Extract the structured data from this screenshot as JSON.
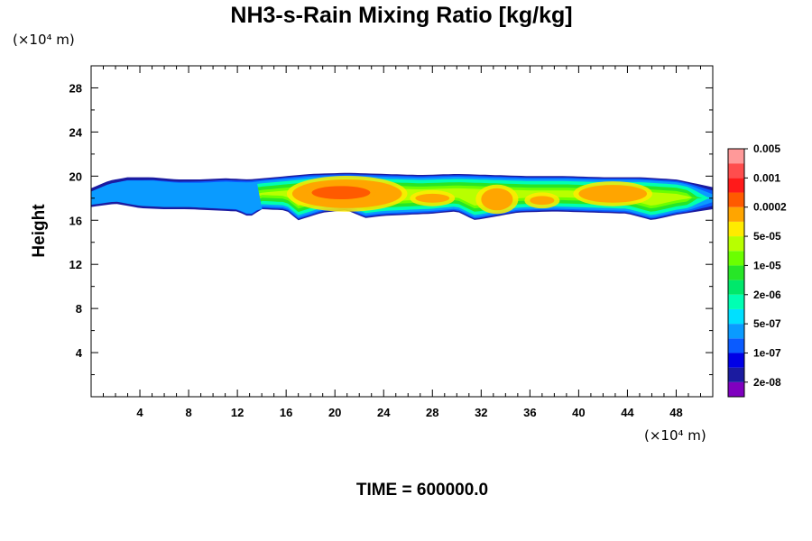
{
  "chart_data": {
    "type": "heatmap",
    "title": "NH3-s-Rain Mixing Ratio [kg/kg]",
    "ylabel": "Height",
    "x_unit_label": "(×10⁴ m)",
    "y_unit_label": "(×10⁴ m)",
    "xlim": [
      0,
      51
    ],
    "ylim": [
      0,
      30
    ],
    "x_ticks": [
      "4",
      "8",
      "12",
      "16",
      "20",
      "24",
      "28",
      "32",
      "36",
      "40",
      "44",
      "48"
    ],
    "y_ticks": [
      "4",
      "8",
      "12",
      "16",
      "20",
      "24",
      "28"
    ],
    "time_label": "TIME = 600000.0",
    "colorbar": {
      "colors": [
        "#7f00bf",
        "#1b1ba0",
        "#0000e6",
        "#0a5bff",
        "#0a9bff",
        "#00e0ff",
        "#00ffb3",
        "#00e86b",
        "#27e627",
        "#6bff00",
        "#b8ff00",
        "#ffeb00",
        "#ffa500",
        "#ff5a00",
        "#ff1a1a",
        "#ff4d4d",
        "#ff9999"
      ],
      "labels": [
        "2e-08",
        "1e-07",
        "5e-07",
        "2e-06",
        "1e-05",
        "5e-05",
        "0.0002",
        "0.001",
        "0.005"
      ]
    },
    "layer": {
      "description_levels": "mixing ratio field confined between roughly 16 and 20.5 (×10⁴ m)",
      "top": [
        [
          0,
          18.9
        ],
        [
          1.5,
          19.6
        ],
        [
          3,
          19.9
        ],
        [
          5,
          19.9
        ],
        [
          7,
          19.7
        ],
        [
          9,
          19.7
        ],
        [
          11,
          19.8
        ],
        [
          13,
          19.7
        ],
        [
          15,
          19.9
        ],
        [
          18,
          20.2
        ],
        [
          21,
          20.3
        ],
        [
          24,
          20.2
        ],
        [
          27,
          20.1
        ],
        [
          30,
          20.2
        ],
        [
          33,
          20.1
        ],
        [
          36,
          20.0
        ],
        [
          39,
          20.0
        ],
        [
          42,
          19.9
        ],
        [
          45,
          19.9
        ],
        [
          48,
          19.7
        ],
        [
          51,
          19.0
        ]
      ],
      "bottom": [
        [
          0,
          17.2
        ],
        [
          2,
          17.5
        ],
        [
          4,
          17.1
        ],
        [
          6,
          17.0
        ],
        [
          8,
          17.0
        ],
        [
          10,
          16.9
        ],
        [
          12,
          16.8
        ],
        [
          13,
          16.3
        ],
        [
          14,
          17.0
        ],
        [
          16,
          16.9
        ],
        [
          17,
          16.0
        ],
        [
          19,
          16.7
        ],
        [
          21,
          16.9
        ],
        [
          22.5,
          16.2
        ],
        [
          24,
          16.4
        ],
        [
          26,
          16.5
        ],
        [
          28,
          16.6
        ],
        [
          30,
          16.8
        ],
        [
          31.5,
          16.0
        ],
        [
          33,
          16.3
        ],
        [
          35,
          16.7
        ],
        [
          38,
          16.8
        ],
        [
          41,
          16.7
        ],
        [
          44,
          16.6
        ],
        [
          46,
          16.0
        ],
        [
          48,
          16.5
        ],
        [
          51,
          17.0
        ]
      ]
    },
    "features": [
      {
        "x": 21,
        "y": 18.4,
        "rx": 4.5,
        "ry": 1.3,
        "level": 12
      },
      {
        "x": 20.5,
        "y": 18.5,
        "rx": 2.4,
        "ry": 0.6,
        "level": 13
      },
      {
        "x": 33.3,
        "y": 17.9,
        "rx": 1.3,
        "ry": 1.0,
        "level": 12
      },
      {
        "x": 42.8,
        "y": 18.4,
        "rx": 2.8,
        "ry": 0.8,
        "level": 12
      },
      {
        "x": 28,
        "y": 18.0,
        "rx": 1.4,
        "ry": 0.4,
        "level": 12
      },
      {
        "x": 37,
        "y": 17.8,
        "rx": 1.0,
        "ry": 0.4,
        "level": 12
      }
    ]
  }
}
